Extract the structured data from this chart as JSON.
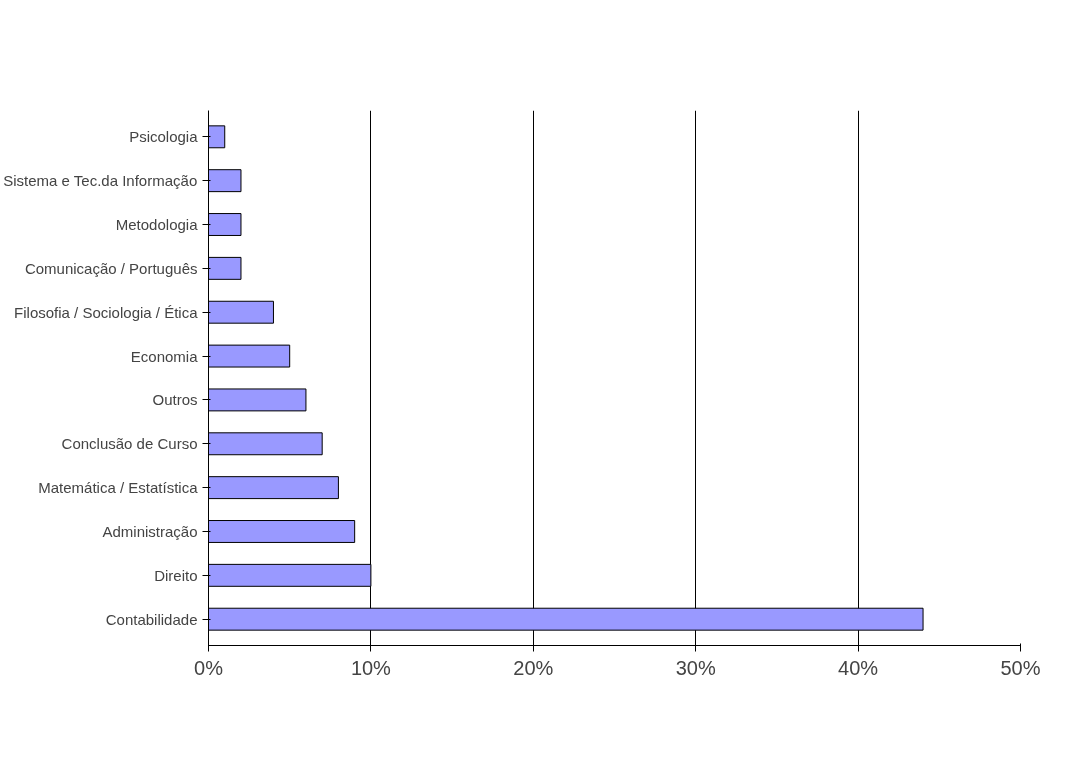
{
  "chart_data": {
    "type": "bar",
    "orientation": "horizontal",
    "categories": [
      "Psicologia",
      "Sistema e Tec.da Informação",
      "Metodologia",
      "Comunicação / Português",
      "Filosofia / Sociologia / Ética",
      "Economia",
      "Outros",
      "Conclusão de Curso",
      "Matemática / Estatística",
      "Administração",
      "Direito",
      "Contabilidade"
    ],
    "values": [
      1,
      2,
      2,
      2,
      4,
      5,
      6,
      7,
      8,
      9,
      10,
      44
    ],
    "color": "#9999ff",
    "xlim": [
      0,
      50
    ],
    "xticks": [
      {
        "value": 0,
        "label": "0%"
      },
      {
        "value": 10,
        "label": "10%"
      },
      {
        "value": 20,
        "label": "20%"
      },
      {
        "value": 30,
        "label": "30%"
      },
      {
        "value": 40,
        "label": "40%"
      },
      {
        "value": 50,
        "label": "50%"
      }
    ],
    "grid": "x"
  }
}
